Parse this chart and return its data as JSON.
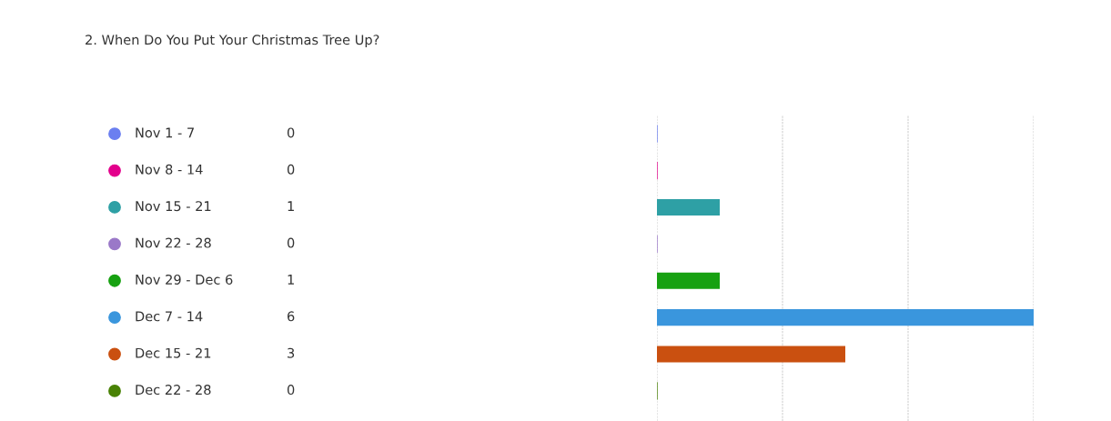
{
  "chart_data": {
    "type": "bar",
    "orientation": "horizontal",
    "title": "2. When Do You Put Your Christmas Tree Up?",
    "categories": [
      "Nov 1 - 7",
      "Nov 8 - 14",
      "Nov 15 - 21",
      "Nov 22 - 28",
      "Nov 29 - Dec 6",
      "Dec 7 - 14",
      "Dec 15 - 21",
      "Dec 22 - 28"
    ],
    "values": [
      0,
      0,
      1,
      0,
      1,
      6,
      3,
      0
    ],
    "colors": [
      "#6b7ff0",
      "#e3008c",
      "#2ea0a5",
      "#9a78c8",
      "#17a111",
      "#3a96dd",
      "#ca5010",
      "#498205"
    ],
    "xlim": [
      0,
      6
    ],
    "xticks": [
      {
        "value": 0,
        "label": null
      },
      {
        "value": 2,
        "label": null
      },
      {
        "value": 4,
        "label": null
      },
      {
        "value": 6,
        "label": null
      }
    ],
    "grid": "x",
    "data_labels": true
  }
}
